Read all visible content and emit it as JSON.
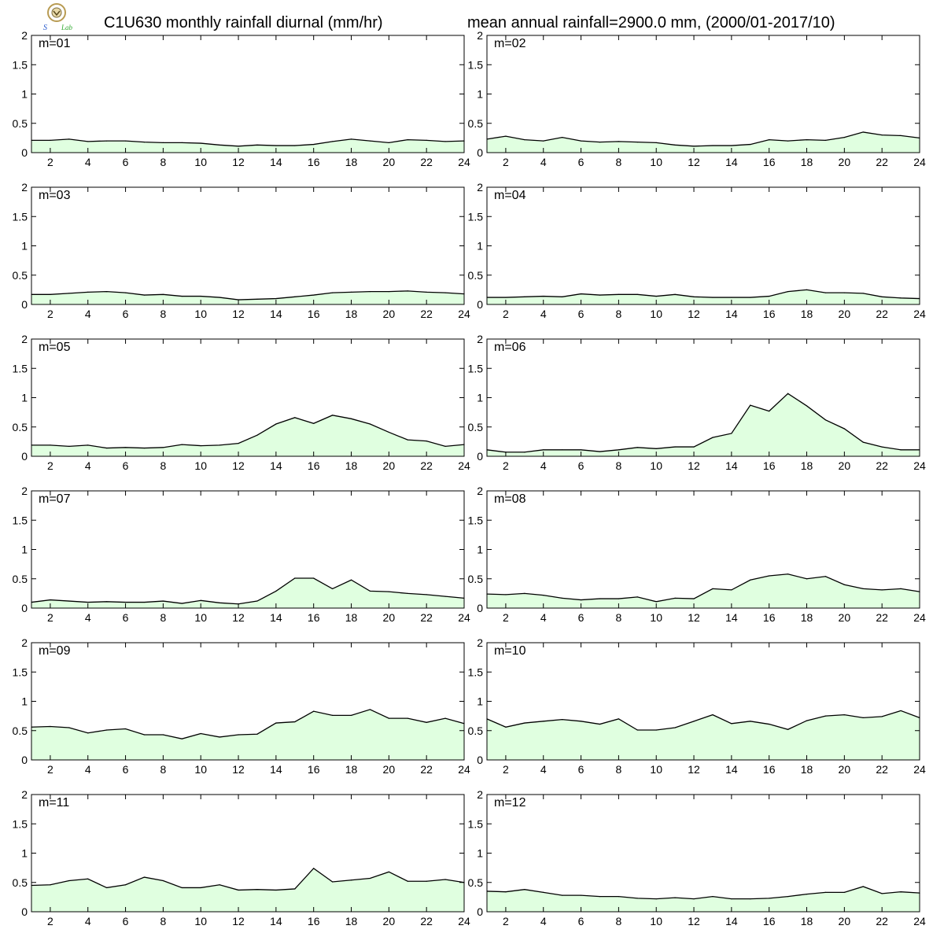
{
  "header": {
    "title_left": "C1U630 monthly rainfall diurnal (mm/hr)",
    "title_right": "mean annual rainfall=2900.0 mm, (2000/01-2017/10)"
  },
  "colors": {
    "fill": "#e0ffe0",
    "line": "#000000",
    "frame": "#000000"
  },
  "chart_data": [
    {
      "type": "area",
      "label": "m=01",
      "x": [
        1,
        2,
        3,
        4,
        5,
        6,
        7,
        8,
        9,
        10,
        11,
        12,
        13,
        14,
        15,
        16,
        17,
        18,
        19,
        20,
        21,
        22,
        23,
        24
      ],
      "values": [
        0.21,
        0.21,
        0.23,
        0.19,
        0.2,
        0.2,
        0.18,
        0.17,
        0.17,
        0.16,
        0.13,
        0.11,
        0.13,
        0.12,
        0.12,
        0.14,
        0.19,
        0.23,
        0.2,
        0.17,
        0.22,
        0.21,
        0.19,
        0.2
      ],
      "xticks": [
        2,
        4,
        6,
        8,
        10,
        12,
        14,
        16,
        18,
        20,
        22,
        24
      ],
      "yticks": [
        0,
        0.5,
        1,
        1.5,
        2
      ],
      "xlim": [
        1,
        24
      ],
      "ylim": [
        0,
        2
      ]
    },
    {
      "type": "area",
      "label": "m=02",
      "x": [
        1,
        2,
        3,
        4,
        5,
        6,
        7,
        8,
        9,
        10,
        11,
        12,
        13,
        14,
        15,
        16,
        17,
        18,
        19,
        20,
        21,
        22,
        23,
        24
      ],
      "values": [
        0.23,
        0.28,
        0.22,
        0.2,
        0.26,
        0.2,
        0.18,
        0.19,
        0.18,
        0.17,
        0.13,
        0.11,
        0.12,
        0.12,
        0.14,
        0.22,
        0.2,
        0.22,
        0.21,
        0.26,
        0.35,
        0.3,
        0.29,
        0.25
      ],
      "xticks": [
        2,
        4,
        6,
        8,
        10,
        12,
        14,
        16,
        18,
        20,
        22,
        24
      ],
      "yticks": [
        0,
        0.5,
        1,
        1.5,
        2
      ],
      "xlim": [
        1,
        24
      ],
      "ylim": [
        0,
        2
      ]
    },
    {
      "type": "area",
      "label": "m=03",
      "x": [
        1,
        2,
        3,
        4,
        5,
        6,
        7,
        8,
        9,
        10,
        11,
        12,
        13,
        14,
        15,
        16,
        17,
        18,
        19,
        20,
        21,
        22,
        23,
        24
      ],
      "values": [
        0.17,
        0.17,
        0.19,
        0.21,
        0.22,
        0.2,
        0.16,
        0.17,
        0.14,
        0.14,
        0.12,
        0.08,
        0.09,
        0.1,
        0.13,
        0.16,
        0.2,
        0.21,
        0.22,
        0.22,
        0.23,
        0.21,
        0.2,
        0.18
      ],
      "xticks": [
        2,
        4,
        6,
        8,
        10,
        12,
        14,
        16,
        18,
        20,
        22,
        24
      ],
      "yticks": [
        0,
        0.5,
        1,
        1.5,
        2
      ],
      "xlim": [
        1,
        24
      ],
      "ylim": [
        0,
        2
      ]
    },
    {
      "type": "area",
      "label": "m=04",
      "x": [
        1,
        2,
        3,
        4,
        5,
        6,
        7,
        8,
        9,
        10,
        11,
        12,
        13,
        14,
        15,
        16,
        17,
        18,
        19,
        20,
        21,
        22,
        23,
        24
      ],
      "values": [
        0.12,
        0.12,
        0.13,
        0.14,
        0.13,
        0.18,
        0.16,
        0.17,
        0.17,
        0.14,
        0.17,
        0.13,
        0.12,
        0.12,
        0.12,
        0.14,
        0.22,
        0.25,
        0.2,
        0.2,
        0.19,
        0.13,
        0.11,
        0.1
      ],
      "xticks": [
        2,
        4,
        6,
        8,
        10,
        12,
        14,
        16,
        18,
        20,
        22,
        24
      ],
      "yticks": [
        0,
        0.5,
        1,
        1.5,
        2
      ],
      "xlim": [
        1,
        24
      ],
      "ylim": [
        0,
        2
      ]
    },
    {
      "type": "area",
      "label": "m=05",
      "x": [
        1,
        2,
        3,
        4,
        5,
        6,
        7,
        8,
        9,
        10,
        11,
        12,
        13,
        14,
        15,
        16,
        17,
        18,
        19,
        20,
        21,
        22,
        23,
        24
      ],
      "values": [
        0.19,
        0.19,
        0.17,
        0.19,
        0.14,
        0.15,
        0.14,
        0.15,
        0.2,
        0.18,
        0.19,
        0.22,
        0.36,
        0.55,
        0.66,
        0.56,
        0.7,
        0.64,
        0.55,
        0.41,
        0.28,
        0.26,
        0.17,
        0.2
      ],
      "xticks": [
        2,
        4,
        6,
        8,
        10,
        12,
        14,
        16,
        18,
        20,
        22,
        24
      ],
      "yticks": [
        0,
        0.5,
        1,
        1.5,
        2
      ],
      "xlim": [
        1,
        24
      ],
      "ylim": [
        0,
        2
      ]
    },
    {
      "type": "area",
      "label": "m=06",
      "x": [
        1,
        2,
        3,
        4,
        5,
        6,
        7,
        8,
        9,
        10,
        11,
        12,
        13,
        14,
        15,
        16,
        17,
        18,
        19,
        20,
        21,
        22,
        23,
        24
      ],
      "values": [
        0.11,
        0.07,
        0.07,
        0.11,
        0.11,
        0.11,
        0.08,
        0.11,
        0.15,
        0.13,
        0.16,
        0.16,
        0.32,
        0.39,
        0.87,
        0.77,
        1.07,
        0.86,
        0.62,
        0.47,
        0.24,
        0.16,
        0.11,
        0.11
      ],
      "xticks": [
        2,
        4,
        6,
        8,
        10,
        12,
        14,
        16,
        18,
        20,
        22,
        24
      ],
      "yticks": [
        0,
        0.5,
        1,
        1.5,
        2
      ],
      "xlim": [
        1,
        24
      ],
      "ylim": [
        0,
        2
      ]
    },
    {
      "type": "area",
      "label": "m=07",
      "x": [
        1,
        2,
        3,
        4,
        5,
        6,
        7,
        8,
        9,
        10,
        11,
        12,
        13,
        14,
        15,
        16,
        17,
        18,
        19,
        20,
        21,
        22,
        23,
        24
      ],
      "values": [
        0.1,
        0.14,
        0.12,
        0.1,
        0.11,
        0.1,
        0.1,
        0.12,
        0.08,
        0.13,
        0.09,
        0.07,
        0.12,
        0.29,
        0.51,
        0.51,
        0.33,
        0.48,
        0.29,
        0.28,
        0.25,
        0.23,
        0.2,
        0.17
      ],
      "xticks": [
        2,
        4,
        6,
        8,
        10,
        12,
        14,
        16,
        18,
        20,
        22,
        24
      ],
      "yticks": [
        0,
        0.5,
        1,
        1.5,
        2
      ],
      "xlim": [
        1,
        24
      ],
      "ylim": [
        0,
        2
      ]
    },
    {
      "type": "area",
      "label": "m=08",
      "x": [
        1,
        2,
        3,
        4,
        5,
        6,
        7,
        8,
        9,
        10,
        11,
        12,
        13,
        14,
        15,
        16,
        17,
        18,
        19,
        20,
        21,
        22,
        23,
        24
      ],
      "values": [
        0.24,
        0.23,
        0.25,
        0.22,
        0.17,
        0.14,
        0.16,
        0.16,
        0.19,
        0.11,
        0.17,
        0.16,
        0.33,
        0.31,
        0.48,
        0.55,
        0.58,
        0.5,
        0.54,
        0.4,
        0.33,
        0.31,
        0.33,
        0.28
      ],
      "xticks": [
        2,
        4,
        6,
        8,
        10,
        12,
        14,
        16,
        18,
        20,
        22,
        24
      ],
      "yticks": [
        0,
        0.5,
        1,
        1.5,
        2
      ],
      "xlim": [
        1,
        24
      ],
      "ylim": [
        0,
        2
      ]
    },
    {
      "type": "area",
      "label": "m=09",
      "x": [
        1,
        2,
        3,
        4,
        5,
        6,
        7,
        8,
        9,
        10,
        11,
        12,
        13,
        14,
        15,
        16,
        17,
        18,
        19,
        20,
        21,
        22,
        23,
        24
      ],
      "values": [
        0.56,
        0.57,
        0.55,
        0.46,
        0.51,
        0.53,
        0.43,
        0.43,
        0.36,
        0.45,
        0.39,
        0.43,
        0.44,
        0.63,
        0.65,
        0.83,
        0.76,
        0.76,
        0.86,
        0.71,
        0.71,
        0.64,
        0.71,
        0.62
      ],
      "xticks": [
        2,
        4,
        6,
        8,
        10,
        12,
        14,
        16,
        18,
        20,
        22,
        24
      ],
      "yticks": [
        0,
        0.5,
        1,
        1.5,
        2
      ],
      "xlim": [
        1,
        24
      ],
      "ylim": [
        0,
        2
      ]
    },
    {
      "type": "area",
      "label": "m=10",
      "x": [
        1,
        2,
        3,
        4,
        5,
        6,
        7,
        8,
        9,
        10,
        11,
        12,
        13,
        14,
        15,
        16,
        17,
        18,
        19,
        20,
        21,
        22,
        23,
        24
      ],
      "values": [
        0.7,
        0.56,
        0.63,
        0.66,
        0.69,
        0.66,
        0.61,
        0.7,
        0.51,
        0.51,
        0.55,
        0.66,
        0.77,
        0.62,
        0.66,
        0.61,
        0.52,
        0.67,
        0.75,
        0.77,
        0.72,
        0.74,
        0.84,
        0.72
      ],
      "xticks": [
        2,
        4,
        6,
        8,
        10,
        12,
        14,
        16,
        18,
        20,
        22,
        24
      ],
      "yticks": [
        0,
        0.5,
        1,
        1.5,
        2
      ],
      "xlim": [
        1,
        24
      ],
      "ylim": [
        0,
        2
      ]
    },
    {
      "type": "area",
      "label": "m=11",
      "x": [
        1,
        2,
        3,
        4,
        5,
        6,
        7,
        8,
        9,
        10,
        11,
        12,
        13,
        14,
        15,
        16,
        17,
        18,
        19,
        20,
        21,
        22,
        23,
        24
      ],
      "values": [
        0.45,
        0.46,
        0.53,
        0.56,
        0.41,
        0.46,
        0.59,
        0.53,
        0.41,
        0.41,
        0.46,
        0.37,
        0.38,
        0.37,
        0.39,
        0.74,
        0.51,
        0.54,
        0.57,
        0.68,
        0.52,
        0.52,
        0.55,
        0.5
      ],
      "xticks": [
        2,
        4,
        6,
        8,
        10,
        12,
        14,
        16,
        18,
        20,
        22,
        24
      ],
      "yticks": [
        0,
        0.5,
        1,
        1.5,
        2
      ],
      "xlim": [
        1,
        24
      ],
      "ylim": [
        0,
        2
      ]
    },
    {
      "type": "area",
      "label": "m=12",
      "x": [
        1,
        2,
        3,
        4,
        5,
        6,
        7,
        8,
        9,
        10,
        11,
        12,
        13,
        14,
        15,
        16,
        17,
        18,
        19,
        20,
        21,
        22,
        23,
        24
      ],
      "values": [
        0.35,
        0.34,
        0.38,
        0.33,
        0.28,
        0.28,
        0.26,
        0.26,
        0.23,
        0.22,
        0.24,
        0.22,
        0.26,
        0.22,
        0.22,
        0.23,
        0.26,
        0.3,
        0.33,
        0.33,
        0.43,
        0.31,
        0.34,
        0.32
      ],
      "xticks": [
        2,
        4,
        6,
        8,
        10,
        12,
        14,
        16,
        18,
        20,
        22,
        24
      ],
      "yticks": [
        0,
        0.5,
        1,
        1.5,
        2
      ],
      "xlim": [
        1,
        24
      ],
      "ylim": [
        0,
        2
      ]
    }
  ]
}
